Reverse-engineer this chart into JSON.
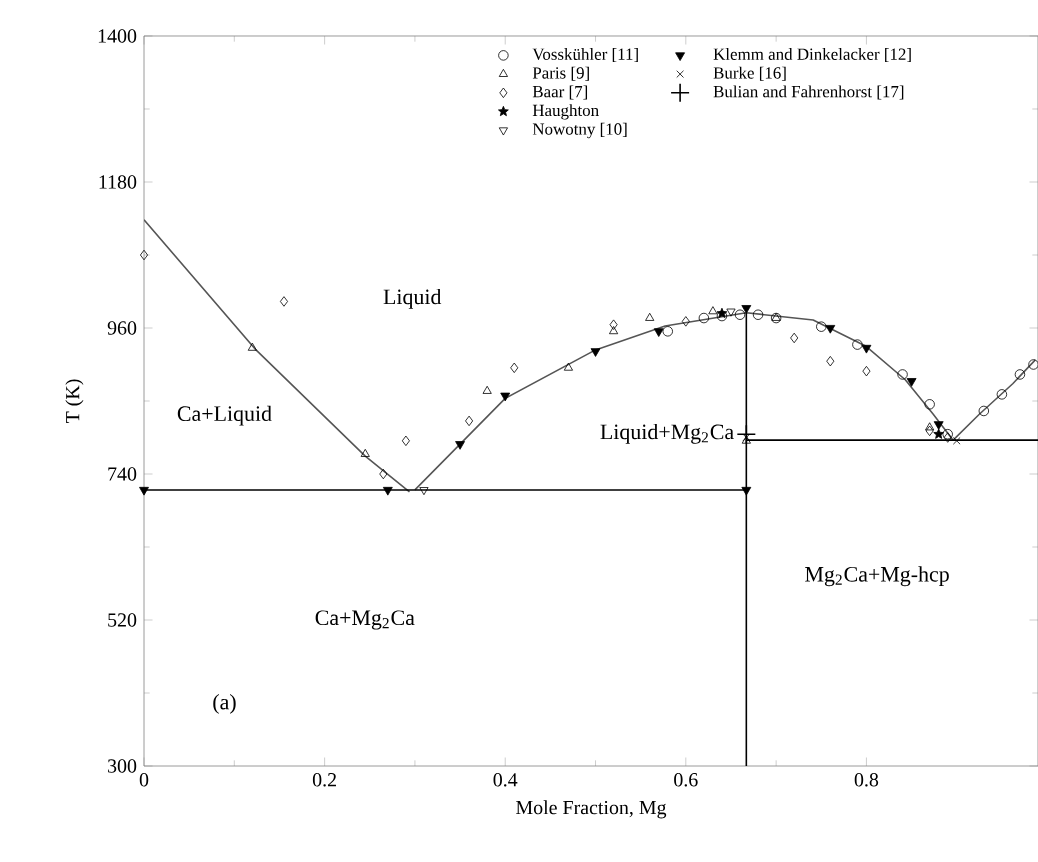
{
  "chart_data": {
    "type": "scatter",
    "xlabel": "Mole Fraction, Mg",
    "ylabel": "T (K)",
    "xlim": [
      0,
      0.99
    ],
    "ylim": [
      300,
      1400
    ],
    "xticks": [
      0,
      0.2,
      0.4,
      0.6,
      0.8
    ],
    "yticks": [
      300,
      520,
      740,
      960,
      1180,
      1400
    ],
    "grid": false,
    "legend": "top",
    "series": [
      {
        "name": "Vosskühler [11]",
        "marker": "circle",
        "color": "#000000",
        "x": [
          0.58,
          0.62,
          0.64,
          0.66,
          0.68,
          0.7,
          0.75,
          0.79,
          0.84,
          0.87,
          0.89,
          0.93,
          0.95,
          0.97,
          0.985
        ],
        "values": [
          955,
          975,
          978,
          980,
          980,
          975,
          962,
          935,
          890,
          845,
          800,
          835,
          860,
          890,
          905
        ]
      },
      {
        "name": "Paris [9]",
        "marker": "triangle",
        "color": "#000000",
        "x": [
          0.12,
          0.245,
          0.38,
          0.47,
          0.52,
          0.56,
          0.63,
          0.667,
          0.7,
          0.87
        ],
        "values": [
          930,
          770,
          865,
          900,
          955,
          975,
          985,
          790,
          975,
          810
        ]
      },
      {
        "name": "Baar [7]",
        "marker": "diamond",
        "color": "#000000",
        "x": [
          0,
          0.155,
          0.265,
          0.29,
          0.36,
          0.41,
          0.52,
          0.6,
          0.72,
          0.76,
          0.8,
          0.87,
          0.89
        ],
        "values": [
          1070,
          1000,
          740,
          790,
          820,
          900,
          965,
          970,
          945,
          910,
          895,
          805,
          795
        ]
      },
      {
        "name": "Haughton",
        "marker": "star",
        "color": "#000000",
        "x": [
          0.64,
          0.88
        ],
        "values": [
          982,
          800
        ]
      },
      {
        "name": "Nowotny [10]",
        "marker": "triangle_down",
        "color": "#000000",
        "x": [
          0.31,
          0.65
        ],
        "values": [
          716,
          985
        ]
      },
      {
        "name": "Klemm and Dinkelacker [12]",
        "marker": "triangle_down_filled",
        "color": "#000000",
        "x": [
          0,
          0.27,
          0.35,
          0.4,
          0.5,
          0.57,
          0.667,
          0.667,
          0.76,
          0.8,
          0.85,
          0.88
        ],
        "values": [
          716,
          716,
          785,
          858,
          925,
          955,
          990,
          716,
          960,
          930,
          880,
          815
        ]
      },
      {
        "name": "Burke [16]",
        "marker": "cross",
        "color": "#000000",
        "x": [
          0.9,
          0.667
        ],
        "values": [
          790,
          795
        ]
      },
      {
        "name": "Bulian and Fahrenhorst [17]",
        "marker": "plus",
        "color": "#000000",
        "x": [
          0.667
        ],
        "values": [
          800
        ]
      },
      {
        "type": "line",
        "marker": "none",
        "color": "#555555",
        "x": [
          0,
          0.124,
          0.245,
          0.294
        ],
        "values": [
          1123,
          927,
          767,
          713
        ]
      },
      {
        "type": "line",
        "marker": "none",
        "color": "#555555",
        "x": [
          0.3,
          0.35,
          0.4,
          0.5,
          0.577,
          0.667,
          0.741,
          0.799,
          0.843,
          0.874,
          0.896,
          0.925,
          0.962,
          0.987
        ],
        "values": [
          716,
          785,
          854,
          927,
          963,
          983,
          972,
          933,
          882,
          830,
          791,
          830,
          876,
          912
        ]
      },
      {
        "type": "line",
        "marker": "none",
        "color": "#000000",
        "x": [
          0,
          0.667
        ],
        "values": [
          716,
          716
        ]
      },
      {
        "type": "line",
        "marker": "none",
        "color": "#000000",
        "x": [
          0.667,
          0.99
        ],
        "values": [
          791,
          791
        ]
      },
      {
        "type": "line",
        "marker": "none",
        "color": "#000000",
        "x": [
          0.667,
          0.667
        ],
        "values": [
          300,
          983
        ]
      }
    ],
    "annotations": [
      "Liquid",
      "Ca+Liquid",
      "Liquid+Mg$_{2}$Ca",
      "Ca+Mg$_{2}$Ca",
      "Mg$_{2}$Ca+Mg-hcp",
      "(a)"
    ]
  }
}
